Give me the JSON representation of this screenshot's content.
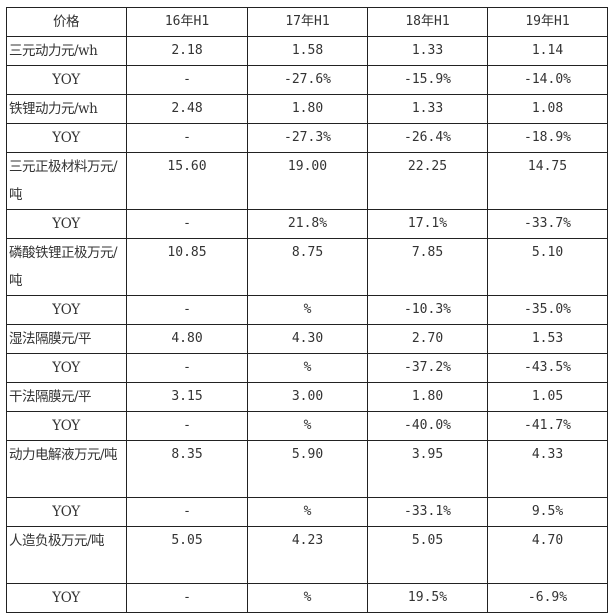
{
  "table": {
    "headers": [
      "价格",
      "16年H1",
      "17年H1",
      "18年H1",
      "19年H1"
    ],
    "rows": [
      {
        "label": "三元动力元/wh",
        "values": [
          "2.18",
          "1.58",
          "1.33",
          "1.14"
        ],
        "tall": false
      },
      {
        "label": "YOY",
        "values": [
          "-",
          "-27.6%",
          "-15.9%",
          "-14.0%"
        ],
        "tall": false
      },
      {
        "label": "铁锂动力元/wh",
        "values": [
          "2.48",
          "1.80",
          "1.33",
          "1.08"
        ],
        "tall": false
      },
      {
        "label": "YOY",
        "values": [
          "-",
          "-27.3%",
          "-26.4%",
          "-18.9%"
        ],
        "tall": false
      },
      {
        "label": "三元正极材料万元/吨",
        "values": [
          "15.60",
          "19.00",
          "22.25",
          "14.75"
        ],
        "tall": true
      },
      {
        "label": "YOY",
        "values": [
          "-",
          "21.8%",
          "17.1%",
          "-33.7%"
        ],
        "tall": false
      },
      {
        "label": "磷酸铁锂正极万元/吨",
        "values": [
          "10.85",
          "8.75",
          "7.85",
          "5.10"
        ],
        "tall": true
      },
      {
        "label": "YOY",
        "values": [
          "-",
          "%",
          "-10.3%",
          "-35.0%"
        ],
        "tall": false
      },
      {
        "label": "湿法隔膜元/平",
        "values": [
          "4.80",
          "4.30",
          "2.70",
          "1.53"
        ],
        "tall": false
      },
      {
        "label": "YOY",
        "values": [
          "-",
          "%",
          "-37.2%",
          "-43.5%"
        ],
        "tall": false
      },
      {
        "label": "干法隔膜元/平",
        "values": [
          "3.15",
          "3.00",
          "1.80",
          "1.05"
        ],
        "tall": false
      },
      {
        "label": "YOY",
        "values": [
          "-",
          "%",
          "-40.0%",
          "-41.7%"
        ],
        "tall": false
      },
      {
        "label": "动力电解液万元/吨",
        "values": [
          "8.35",
          "5.90",
          "3.95",
          "4.33"
        ],
        "tall": true
      },
      {
        "label": "YOY",
        "values": [
          "-",
          "%",
          "-33.1%",
          "9.5%"
        ],
        "tall": false
      },
      {
        "label": "人造负极万元/吨",
        "values": [
          "5.05",
          "4.23",
          "5.05",
          "4.70"
        ],
        "tall": true
      },
      {
        "label": "YOY",
        "values": [
          "-",
          "%",
          "19.5%",
          "-6.9%"
        ],
        "tall": false
      }
    ]
  }
}
